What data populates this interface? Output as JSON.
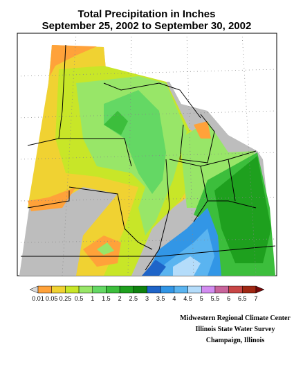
{
  "header": {
    "title": "Total Precipitation in Inches",
    "subtitle": "September 25, 2002 to September 30, 2002"
  },
  "legend": {
    "labels": [
      "0.01",
      "0.05",
      "0.25",
      "0.5",
      "1",
      "1.5",
      "2",
      "2.5",
      "3",
      "3.5",
      "4",
      "4.5",
      "5",
      "5.5",
      "6",
      "6.5",
      "7"
    ],
    "colors": [
      "#d8d8d8",
      "#ffa23a",
      "#f0d232",
      "#c8e628",
      "#98e668",
      "#64d864",
      "#3cbe3c",
      "#1ea01e",
      "#0f820f",
      "#1e64c8",
      "#3296e6",
      "#5ab4f0",
      "#b4dcfa",
      "#d28cf0",
      "#c8649b",
      "#c84646",
      "#a02814",
      "#780a0a"
    ]
  },
  "credits": [
    "Midwestern Regional Climate Center",
    "Illinois State Water Survey",
    "Champaign, Illinois"
  ]
}
